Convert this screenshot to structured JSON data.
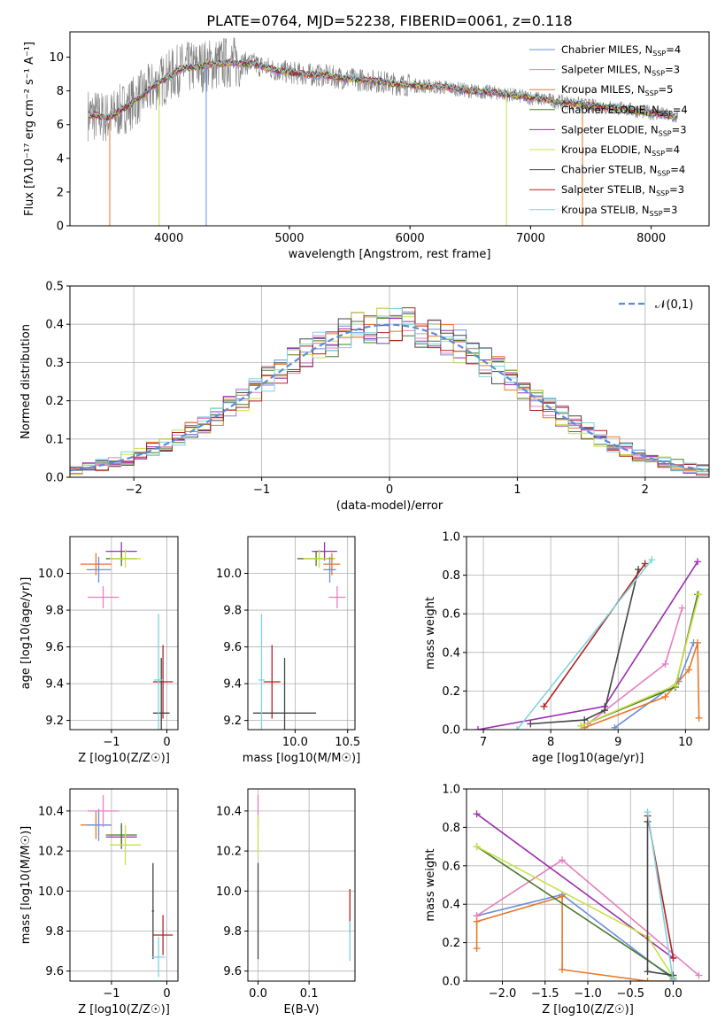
{
  "figure": {
    "title": "PLATE=0764, MJD=52238, FIBERID=0061, z=0.118"
  },
  "legend_models": [
    {
      "name": "Chabrier MILES, Nₛₛₚ=4",
      "label": "Chabrier MILES, N",
      "sub": "SSP",
      "tail": "=4",
      "color": "#6a8fdc"
    },
    {
      "name": "Salpeter MILES, NSSP=3",
      "label": "Salpeter MILES, N",
      "sub": "SSP",
      "tail": "=3",
      "color": "#e57fbf"
    },
    {
      "name": "Kroupa MILES, NSSP=5",
      "label": "Kroupa MILES, N",
      "sub": "SSP",
      "tail": "=5",
      "color": "#e8772a"
    },
    {
      "name": "Chabrier ELODIE, NSSP=4",
      "label": "Chabrier ELODIE, N",
      "sub": "SSP",
      "tail": "=4",
      "color": "#4a7a2a"
    },
    {
      "name": "Salpeter ELODIE, NSSP=3",
      "label": "Salpeter ELODIE, N",
      "sub": "SSP",
      "tail": "=3",
      "color": "#9b2fae"
    },
    {
      "name": "Kroupa ELODIE, NSSP=4",
      "label": "Kroupa ELODIE, N",
      "sub": "SSP",
      "tail": "=4",
      "color": "#c8e04a"
    },
    {
      "name": "Chabrier STELIB, NSSP=4",
      "label": "Chabrier STELIB, N",
      "sub": "SSP",
      "tail": "=4",
      "color": "#444444"
    },
    {
      "name": "Salpeter STELIB, NSSP=3",
      "label": "Salpeter STELIB, N",
      "sub": "SSP",
      "tail": "=3",
      "color": "#b22222"
    },
    {
      "name": "Kroupa STELIB, NSSP=3",
      "label": "Kroupa STELIB, N",
      "sub": "SSP",
      "tail": "=3",
      "color": "#7fd3de"
    }
  ],
  "chart_data": [
    {
      "id": "spectrum",
      "type": "line",
      "title": "PLATE=0764, MJD=52238, FIBERID=0061, z=0.118",
      "xlabel": "wavelength [Angstrom, rest frame]",
      "ylabel": "Flux [fλ10⁻¹⁷ erg cm⁻² s⁻¹ A⁻¹]",
      "xlim": [
        3180,
        8480
      ],
      "ylim": [
        0,
        11.5
      ],
      "xticks": [
        4000,
        5000,
        6000,
        7000,
        8000
      ],
      "yticks": [
        0,
        2,
        4,
        6,
        8,
        10
      ],
      "grid": false,
      "legend": "top-right",
      "data_color": "#808080",
      "continuum_x": [
        3330,
        3500,
        3700,
        3900,
        4100,
        4300,
        4500,
        4700,
        4900,
        5100,
        5300,
        5500,
        5700,
        5900,
        6100,
        6300,
        6500,
        6700,
        6900,
        7100,
        7300,
        7500,
        7700,
        7900,
        8100,
        8220
      ],
      "continuum_y": [
        6.6,
        6.4,
        7.3,
        8.4,
        9.3,
        9.5,
        9.7,
        9.6,
        9.2,
        9.0,
        8.9,
        8.7,
        8.6,
        8.4,
        8.3,
        8.2,
        8.0,
        7.9,
        7.7,
        7.5,
        7.3,
        7.1,
        7.0,
        6.8,
        6.6,
        6.4
      ],
      "absorption_lines": [
        {
          "x": 3510,
          "to": 0,
          "color": "#e8772a"
        },
        {
          "x": 3920,
          "to": 0,
          "color": "#c8e04a"
        },
        {
          "x": 4310,
          "to": 0,
          "color": "#6a8fdc"
        },
        {
          "x": 6800,
          "to": 0,
          "color": "#c8e04a"
        },
        {
          "x": 7430,
          "to": 0,
          "color": "#e8772a"
        }
      ]
    },
    {
      "id": "residuals",
      "type": "histogram",
      "xlabel": "(data-model)/error",
      "ylabel": "Normed distribution",
      "xlim": [
        -2.5,
        2.5
      ],
      "ylim": [
        0,
        0.5
      ],
      "xticks": [
        -2,
        -1,
        0,
        1,
        2
      ],
      "yticks": [
        0.0,
        0.1,
        0.2,
        0.3,
        0.4,
        0.5
      ],
      "grid": true,
      "legend": "top-right",
      "reference_curve": {
        "name": "N(0,1)",
        "mean": 0,
        "sigma": 1,
        "color": "#5b8bdc",
        "style": "dashed"
      },
      "bin_width": 0.1
    },
    {
      "id": "age_vs_Z",
      "type": "errorbar",
      "xlabel": "Z [log10(Z/Z☉)]",
      "ylabel": "age  [log10(age/yr)]",
      "xlim": [
        -1.75,
        0.2
      ],
      "ylim": [
        9.15,
        10.2
      ],
      "xticks": [
        -1,
        0
      ],
      "yticks": [
        9.2,
        9.4,
        9.6,
        9.8,
        10.0
      ],
      "grid": true,
      "points": [
        {
          "x": -1.28,
          "y": 10.05,
          "xerr": 0.28,
          "yerr": 0.06,
          "color": "#e8772a"
        },
        {
          "x": -1.23,
          "y": 10.02,
          "xerr": 0.22,
          "yerr": 0.07,
          "color": "#6a8fdc"
        },
        {
          "x": -1.15,
          "y": 9.87,
          "xerr": 0.28,
          "yerr": 0.06,
          "color": "#e57fbf"
        },
        {
          "x": -0.82,
          "y": 10.12,
          "xerr": 0.28,
          "yerr": 0.05,
          "color": "#9b2fae"
        },
        {
          "x": -0.82,
          "y": 10.08,
          "xerr": 0.28,
          "yerr": 0.04,
          "color": "#4a7a2a"
        },
        {
          "x": -0.75,
          "y": 10.08,
          "xerr": 0.28,
          "yerr": 0.05,
          "color": "#c8e04a"
        },
        {
          "x": -0.07,
          "y": 9.41,
          "xerr": 0.18,
          "yerr": 0.2,
          "color": "#b22222"
        },
        {
          "x": -0.1,
          "y": 9.24,
          "xerr": 0.15,
          "yerr": 0.3,
          "color": "#444444"
        },
        {
          "x": -0.15,
          "y": 9.42,
          "xerr": 0.08,
          "yerr": 0.36,
          "color": "#7fd3de"
        }
      ]
    },
    {
      "id": "age_vs_mass",
      "type": "errorbar",
      "xlabel": "mass [log10(M/M☉)]",
      "ylabel": "",
      "xlim": [
        9.55,
        10.57
      ],
      "ylim": [
        9.15,
        10.2
      ],
      "xticks": [
        10.0,
        10.5
      ],
      "yticks": [
        9.2,
        9.4,
        9.6,
        9.8,
        10.0
      ],
      "grid": true,
      "points": [
        {
          "x": 10.28,
          "y": 10.12,
          "xerr": 0.12,
          "yerr": 0.05,
          "color": "#9b2fae"
        },
        {
          "x": 10.2,
          "y": 10.08,
          "xerr": 0.18,
          "yerr": 0.04,
          "color": "#4a7a2a"
        },
        {
          "x": 10.23,
          "y": 10.08,
          "xerr": 0.15,
          "yerr": 0.05,
          "color": "#c8e04a"
        },
        {
          "x": 10.35,
          "y": 10.05,
          "xerr": 0.08,
          "yerr": 0.06,
          "color": "#e8772a"
        },
        {
          "x": 10.33,
          "y": 10.02,
          "xerr": 0.06,
          "yerr": 0.07,
          "color": "#6a8fdc"
        },
        {
          "x": 10.4,
          "y": 9.87,
          "xerr": 0.08,
          "yerr": 0.06,
          "color": "#e57fbf"
        },
        {
          "x": 9.78,
          "y": 9.41,
          "xerr": 0.08,
          "yerr": 0.2,
          "color": "#b22222"
        },
        {
          "x": 9.9,
          "y": 9.24,
          "xerr": 0.3,
          "yerr": 0.3,
          "color": "#444444"
        },
        {
          "x": 9.68,
          "y": 9.42,
          "xerr": 0.03,
          "yerr": 0.36,
          "color": "#7fd3de"
        }
      ]
    },
    {
      "id": "mass_weight_vs_age",
      "type": "line",
      "xlabel": "age  [log10(age/yr)]",
      "ylabel": "mass weight",
      "xlim": [
        6.75,
        10.35
      ],
      "ylim": [
        0,
        1.0
      ],
      "xticks": [
        7,
        8,
        9,
        10
      ],
      "yticks": [
        0.0,
        0.2,
        0.4,
        0.6,
        0.8,
        1.0
      ],
      "grid": true,
      "series": [
        {
          "color": "#6a8fdc",
          "x": [
            8.95,
            9.9,
            10.12
          ],
          "y": [
            0.01,
            0.25,
            0.45
          ]
        },
        {
          "color": "#e57fbf",
          "x": [
            8.55,
            9.7,
            9.95
          ],
          "y": [
            0.03,
            0.34,
            0.63
          ]
        },
        {
          "color": "#e8772a",
          "x": [
            8.5,
            9.7,
            10.05,
            10.18,
            10.2
          ],
          "y": [
            0.01,
            0.17,
            0.31,
            0.45,
            0.06
          ]
        },
        {
          "color": "#4a7a2a",
          "x": [
            8.45,
            9.85,
            10.18
          ],
          "y": [
            0.02,
            0.22,
            0.7
          ]
        },
        {
          "color": "#9b2fae",
          "x": [
            6.92,
            8.8,
            10.18
          ],
          "y": [
            0.0,
            0.12,
            0.87
          ]
        },
        {
          "color": "#c8e04a",
          "x": [
            8.45,
            9.85,
            10.2
          ],
          "y": [
            0.02,
            0.23,
            0.7
          ]
        },
        {
          "color": "#444444",
          "x": [
            7.7,
            8.5,
            8.8,
            9.3
          ],
          "y": [
            0.03,
            0.05,
            0.1,
            0.83
          ]
        },
        {
          "color": "#b22222",
          "x": [
            7.9,
            9.4
          ],
          "y": [
            0.12,
            0.86
          ]
        },
        {
          "color": "#7fd3de",
          "x": [
            7.5,
            9.5
          ],
          "y": [
            0.0,
            0.88
          ]
        }
      ]
    },
    {
      "id": "mass_vs_Z",
      "type": "errorbar",
      "xlabel": "Z [log10(Z/Z☉)]",
      "ylabel": "mass [log10(M/M☉)]",
      "xlim": [
        -1.75,
        0.2
      ],
      "ylim": [
        9.55,
        10.51
      ],
      "xticks": [
        -1,
        0
      ],
      "yticks": [
        9.6,
        9.8,
        10.0,
        10.2,
        10.4
      ],
      "grid": true,
      "points": [
        {
          "x": -1.28,
          "y": 10.33,
          "xerr": 0.28,
          "yerr": 0.07,
          "color": "#e8772a"
        },
        {
          "x": -1.23,
          "y": 10.33,
          "xerr": 0.22,
          "yerr": 0.08,
          "color": "#6a8fdc"
        },
        {
          "x": -1.15,
          "y": 10.4,
          "xerr": 0.28,
          "yerr": 0.08,
          "color": "#e57fbf"
        },
        {
          "x": -0.82,
          "y": 10.27,
          "xerr": 0.28,
          "yerr": 0.06,
          "color": "#9b2fae"
        },
        {
          "x": -0.82,
          "y": 10.28,
          "xerr": 0.28,
          "yerr": 0.06,
          "color": "#4a7a2a"
        },
        {
          "x": -0.75,
          "y": 10.23,
          "xerr": 0.28,
          "yerr": 0.1,
          "color": "#c8e04a"
        },
        {
          "x": -0.07,
          "y": 9.78,
          "xerr": 0.18,
          "yerr": 0.1,
          "color": "#b22222"
        },
        {
          "x": -0.25,
          "y": 9.9,
          "xerr": 0.02,
          "yerr": 0.24,
          "color": "#444444"
        },
        {
          "x": -0.15,
          "y": 9.67,
          "xerr": 0.12,
          "yerr": 0.1,
          "color": "#7fd3de"
        }
      ]
    },
    {
      "id": "mass_vs_ebv",
      "type": "errorbar",
      "xlabel": "E(B-V)",
      "ylabel": "",
      "xlim": [
        -0.02,
        0.19
      ],
      "ylim": [
        9.55,
        10.51
      ],
      "xticks": [
        0.0,
        0.1
      ],
      "yticks": [
        9.6,
        9.8,
        10.0,
        10.2,
        10.4
      ],
      "grid": true,
      "points": [
        {
          "x": 0.0,
          "y": 10.4,
          "xerr": 0.0,
          "yerr": 0.08,
          "color": "#e57fbf"
        },
        {
          "x": 0.0,
          "y": 10.28,
          "xerr": 0.0,
          "yerr": 0.1,
          "color": "#c8e04a"
        },
        {
          "x": 0.0,
          "y": 9.9,
          "xerr": 0.0,
          "yerr": 0.24,
          "color": "#444444"
        },
        {
          "x": 0.18,
          "y": 9.9,
          "xerr": 0.0,
          "yerr": 0.11,
          "color": "#b22222"
        },
        {
          "x": 0.18,
          "y": 9.75,
          "xerr": 0.0,
          "yerr": 0.1,
          "color": "#7fd3de"
        }
      ]
    },
    {
      "id": "mass_weight_vs_Z",
      "type": "line",
      "xlabel": "Z [log10(Z/Z☉)]",
      "ylabel": "mass weight",
      "xlim": [
        -2.42,
        0.42
      ],
      "ylim": [
        0,
        1.0
      ],
      "xticks": [
        -2.0,
        -1.5,
        -1.0,
        -0.5,
        0.0
      ],
      "yticks": [
        0.0,
        0.2,
        0.4,
        0.6,
        0.8,
        1.0
      ],
      "grid": true,
      "series": [
        {
          "color": "#6a8fdc",
          "x": [
            -2.3,
            -1.3,
            0.0
          ],
          "y": [
            0.34,
            0.45,
            0.01
          ]
        },
        {
          "color": "#e57fbf",
          "x": [
            -2.3,
            -1.3,
            0.3
          ],
          "y": [
            0.34,
            0.63,
            0.03
          ]
        },
        {
          "color": "#e8772a",
          "x": [
            -2.3,
            -2.3,
            -1.3,
            -1.3,
            -0.3,
            0.0
          ],
          "y": [
            0.17,
            0.31,
            0.44,
            0.06,
            0.0,
            0.0
          ]
        },
        {
          "color": "#4a7a2a",
          "x": [
            -2.3,
            0.0
          ],
          "y": [
            0.7,
            0.02
          ]
        },
        {
          "color": "#9b2fae",
          "x": [
            -2.3,
            0.0
          ],
          "y": [
            0.87,
            0.12
          ]
        },
        {
          "color": "#c8e04a",
          "x": [
            -2.3,
            -0.3,
            0.0
          ],
          "y": [
            0.7,
            0.23,
            0.02
          ]
        },
        {
          "color": "#444444",
          "x": [
            -0.3,
            -0.3,
            0.0
          ],
          "y": [
            0.83,
            0.05,
            0.03
          ]
        },
        {
          "color": "#b22222",
          "x": [
            -0.3,
            0.0
          ],
          "y": [
            0.86,
            0.12
          ]
        },
        {
          "color": "#7fd3de",
          "x": [
            -0.3,
            0.0
          ],
          "y": [
            0.88,
            0.0
          ]
        }
      ]
    }
  ]
}
